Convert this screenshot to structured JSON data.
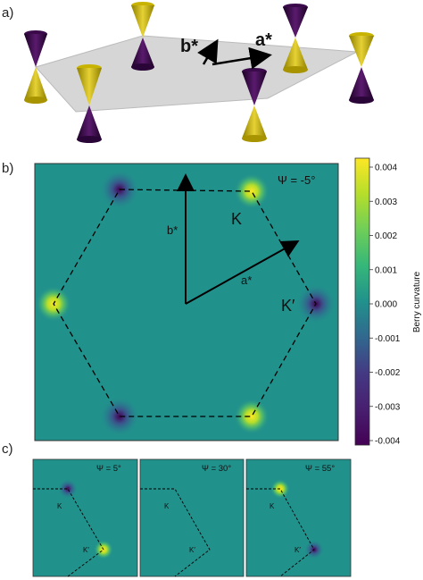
{
  "panels": {
    "a": {
      "label": "a)",
      "vector_a": "a*",
      "vector_b": "b*"
    },
    "b": {
      "label": "b)",
      "psi": "Ψ = -5°",
      "vector_a": "a*",
      "vector_b": "b*",
      "valley_K": "K",
      "valley_Kp": "K′"
    },
    "c": {
      "label": "c)",
      "subpanels": [
        {
          "psi": "Ψ = 5°",
          "K": "K",
          "Kp": "K′"
        },
        {
          "psi": "Ψ = 30°",
          "K": "K",
          "Kp": "K′"
        },
        {
          "psi": "Ψ = 55°",
          "K": "K",
          "Kp": "K′"
        }
      ]
    }
  },
  "colorbar": {
    "label": "Berry curvature",
    "ticks": [
      "0.004",
      "0.003",
      "0.002",
      "0.001",
      "0.000",
      "-0.001",
      "-0.002",
      "-0.003",
      "-0.004"
    ]
  },
  "colors": {
    "background_teal": "#21918c",
    "positive_yellow": "#fde725",
    "negative_purple": "#440154",
    "cone_yellow": "#c8b400",
    "cone_purple": "#3a0a4a"
  }
}
